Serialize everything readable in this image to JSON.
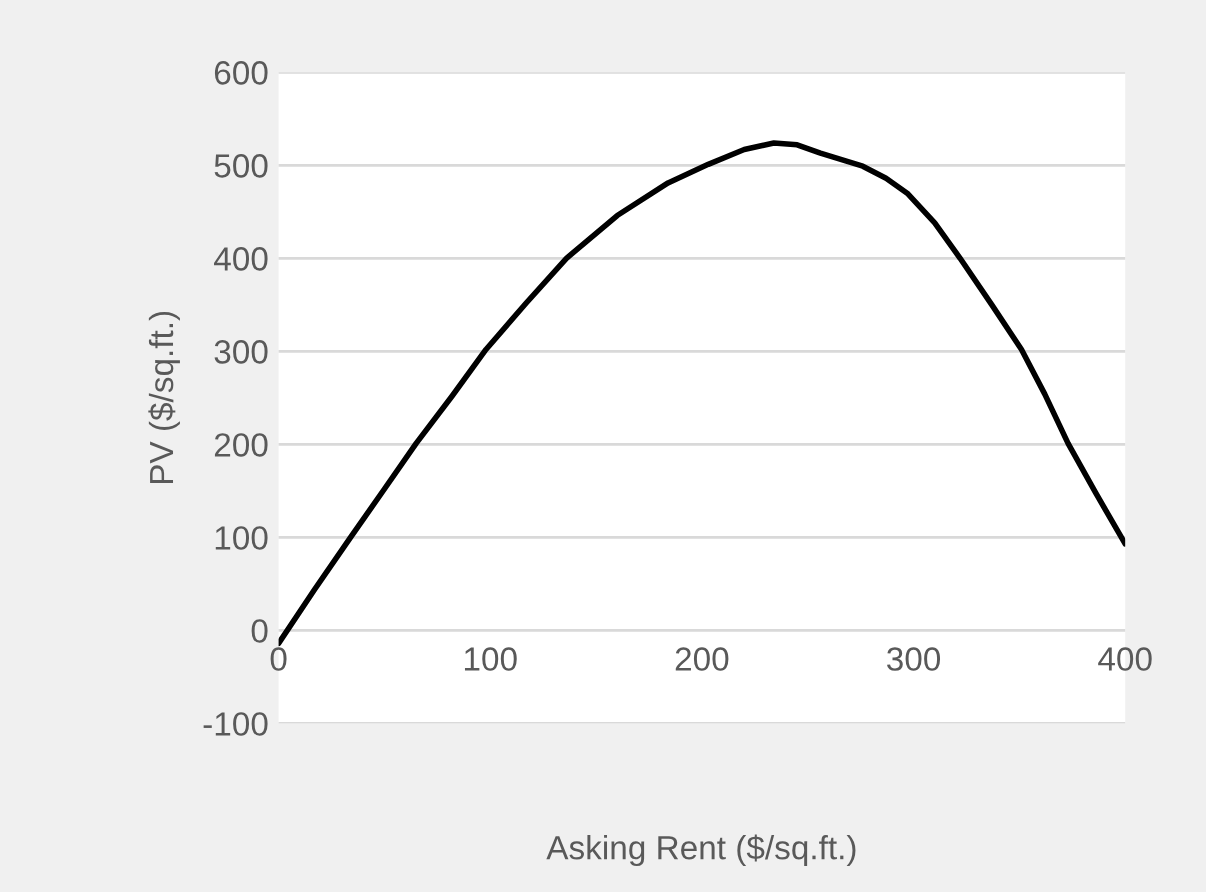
{
  "chart_data": {
    "type": "line",
    "xlabel": "Asking Rent ($/sq.ft.)",
    "ylabel": "PV ($/sq.ft.)",
    "xlim": [
      0,
      400
    ],
    "ylim": [
      -100,
      600
    ],
    "xticks": [
      0,
      100,
      200,
      300,
      400
    ],
    "yticks": [
      -100,
      0,
      100,
      200,
      300,
      400,
      500,
      600
    ],
    "grid": "y",
    "legend": false,
    "marker": "none",
    "line_style": "solid",
    "series": [
      {
        "color": "#000000",
        "x": [
          0,
          17,
          34,
          50,
          65,
          82,
          98,
          117,
          136,
          160,
          184,
          203,
          220,
          234,
          245,
          256,
          266,
          276,
          287,
          297,
          310,
          322,
          337,
          351,
          362,
          373,
          386,
          400
        ],
        "values": [
          -14,
          44,
          100,
          152,
          201,
          252,
          302,
          352,
          400,
          446,
          481,
          501,
          517,
          524,
          522,
          513,
          506,
          499,
          486,
          470,
          438,
          400,
          350,
          302,
          254,
          201,
          148,
          93
        ]
      }
    ]
  }
}
